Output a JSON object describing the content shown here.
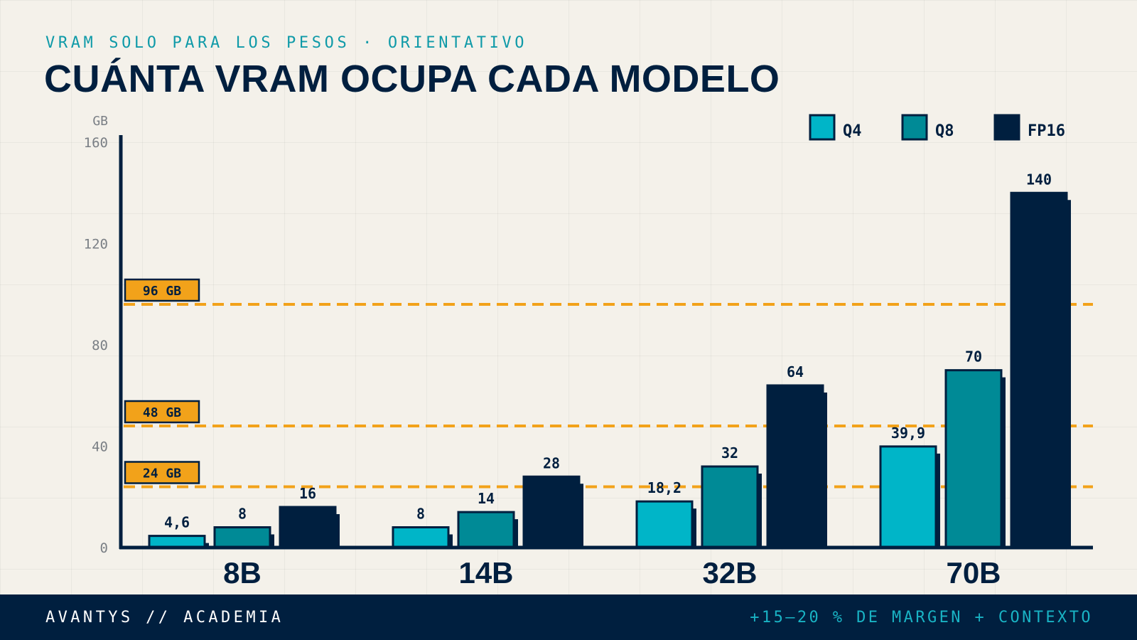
{
  "header": {
    "kicker": "VRAM SOLO PARA LOS PESOS · ORIENTATIVO",
    "title": "CUÁNTA VRAM OCUPA CADA MODELO"
  },
  "footer": {
    "left": "AVANTYS // ACADEMIA",
    "right": "+15–20 % DE MARGEN + CONTEXTO"
  },
  "colors": {
    "navy": "#001f3f",
    "accent_orange": "#f2a21a",
    "q4": "#00b5c8",
    "q8": "#008a96",
    "fp16": "#001f3f"
  },
  "chart_data": {
    "type": "bar",
    "title": "CUÁNTA VRAM OCUPA CADA MODELO",
    "ylabel": "GB",
    "ylim": [
      0,
      160
    ],
    "yticks": [
      0,
      40,
      80,
      120,
      160
    ],
    "categories": [
      "8B",
      "14B",
      "32B",
      "70B"
    ],
    "series": [
      {
        "name": "Q4",
        "values": [
          4.6,
          8,
          18.2,
          39.9
        ],
        "labels": [
          "4,6",
          "8",
          "18,2",
          "39,9"
        ],
        "color": "#00b5c8"
      },
      {
        "name": "Q8",
        "values": [
          8,
          14,
          32,
          70
        ],
        "labels": [
          "8",
          "14",
          "32",
          "70"
        ],
        "color": "#008a96"
      },
      {
        "name": "FP16",
        "values": [
          16,
          28,
          64,
          140
        ],
        "labels": [
          "16",
          "28",
          "64",
          "140"
        ],
        "color": "#001f3f"
      }
    ],
    "reference_lines": [
      {
        "value": 24,
        "label": "24 GB"
      },
      {
        "value": 48,
        "label": "48 GB"
      },
      {
        "value": 96,
        "label": "96 GB"
      }
    ],
    "legend_position": "top-right",
    "grid": true
  }
}
